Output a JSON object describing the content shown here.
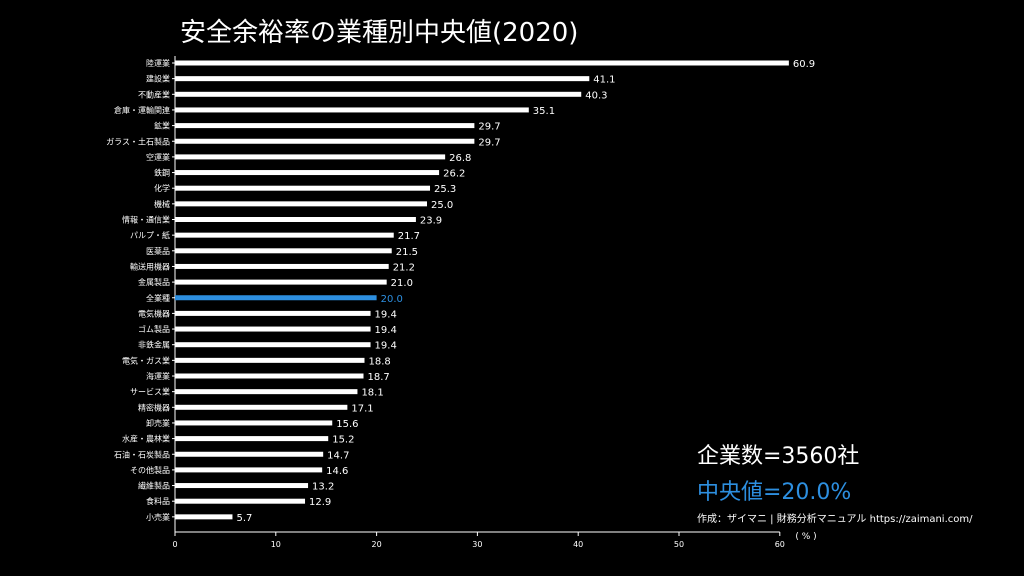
{
  "title": "安全余裕率の業種別中央値(2020)",
  "info": {
    "company_count": "企業数=3560社",
    "median": "中央値=20.0%",
    "source": "作成：ザイマニ | 財務分析マニュアル https://zaimani.com/"
  },
  "colors": {
    "bar": "#ffffff",
    "highlight": "#2d8fe0",
    "background": "#000000"
  },
  "chart_data": {
    "type": "bar",
    "orientation": "horizontal",
    "title": "安全余裕率の業種別中央値(2020)",
    "xlabel": "( % )",
    "ylabel": "",
    "xlim": [
      0,
      60
    ],
    "xticks": [
      0,
      10,
      20,
      30,
      40,
      50,
      60
    ],
    "grid": false,
    "highlight_category": "全業種",
    "categories": [
      "陸運業",
      "建設業",
      "不動産業",
      "倉庫・運輸関連",
      "鉱業",
      "ガラス・土石製品",
      "空運業",
      "鉄鋼",
      "化学",
      "機械",
      "情報・通信業",
      "パルプ・紙",
      "医薬品",
      "輸送用機器",
      "金属製品",
      "全業種",
      "電気機器",
      "ゴム製品",
      "非鉄金属",
      "電気・ガス業",
      "海運業",
      "サービス業",
      "精密機器",
      "卸売業",
      "水産・農林業",
      "石油・石炭製品",
      "その他製品",
      "繊維製品",
      "食料品",
      "小売業"
    ],
    "values": [
      60.9,
      41.1,
      40.3,
      35.1,
      29.7,
      29.7,
      26.8,
      26.2,
      25.3,
      25.0,
      23.9,
      21.7,
      21.5,
      21.2,
      21.0,
      20.0,
      19.4,
      19.4,
      19.4,
      18.8,
      18.7,
      18.1,
      17.1,
      15.6,
      15.2,
      14.7,
      14.6,
      13.2,
      12.9,
      5.7
    ],
    "value_labels": [
      "60.9",
      "41.1",
      "40.3",
      "35.1",
      "29.7",
      "29.7",
      "26.8",
      "26.2",
      "25.3",
      "25.0",
      "23.9",
      "21.7",
      "21.5",
      "21.2",
      "21.0",
      "20.0",
      "19.4",
      "19.4",
      "19.4",
      "18.8",
      "18.7",
      "18.1",
      "17.1",
      "15.6",
      "15.2",
      "14.7",
      "14.6",
      "13.2",
      "12.9",
      "5.7"
    ]
  }
}
